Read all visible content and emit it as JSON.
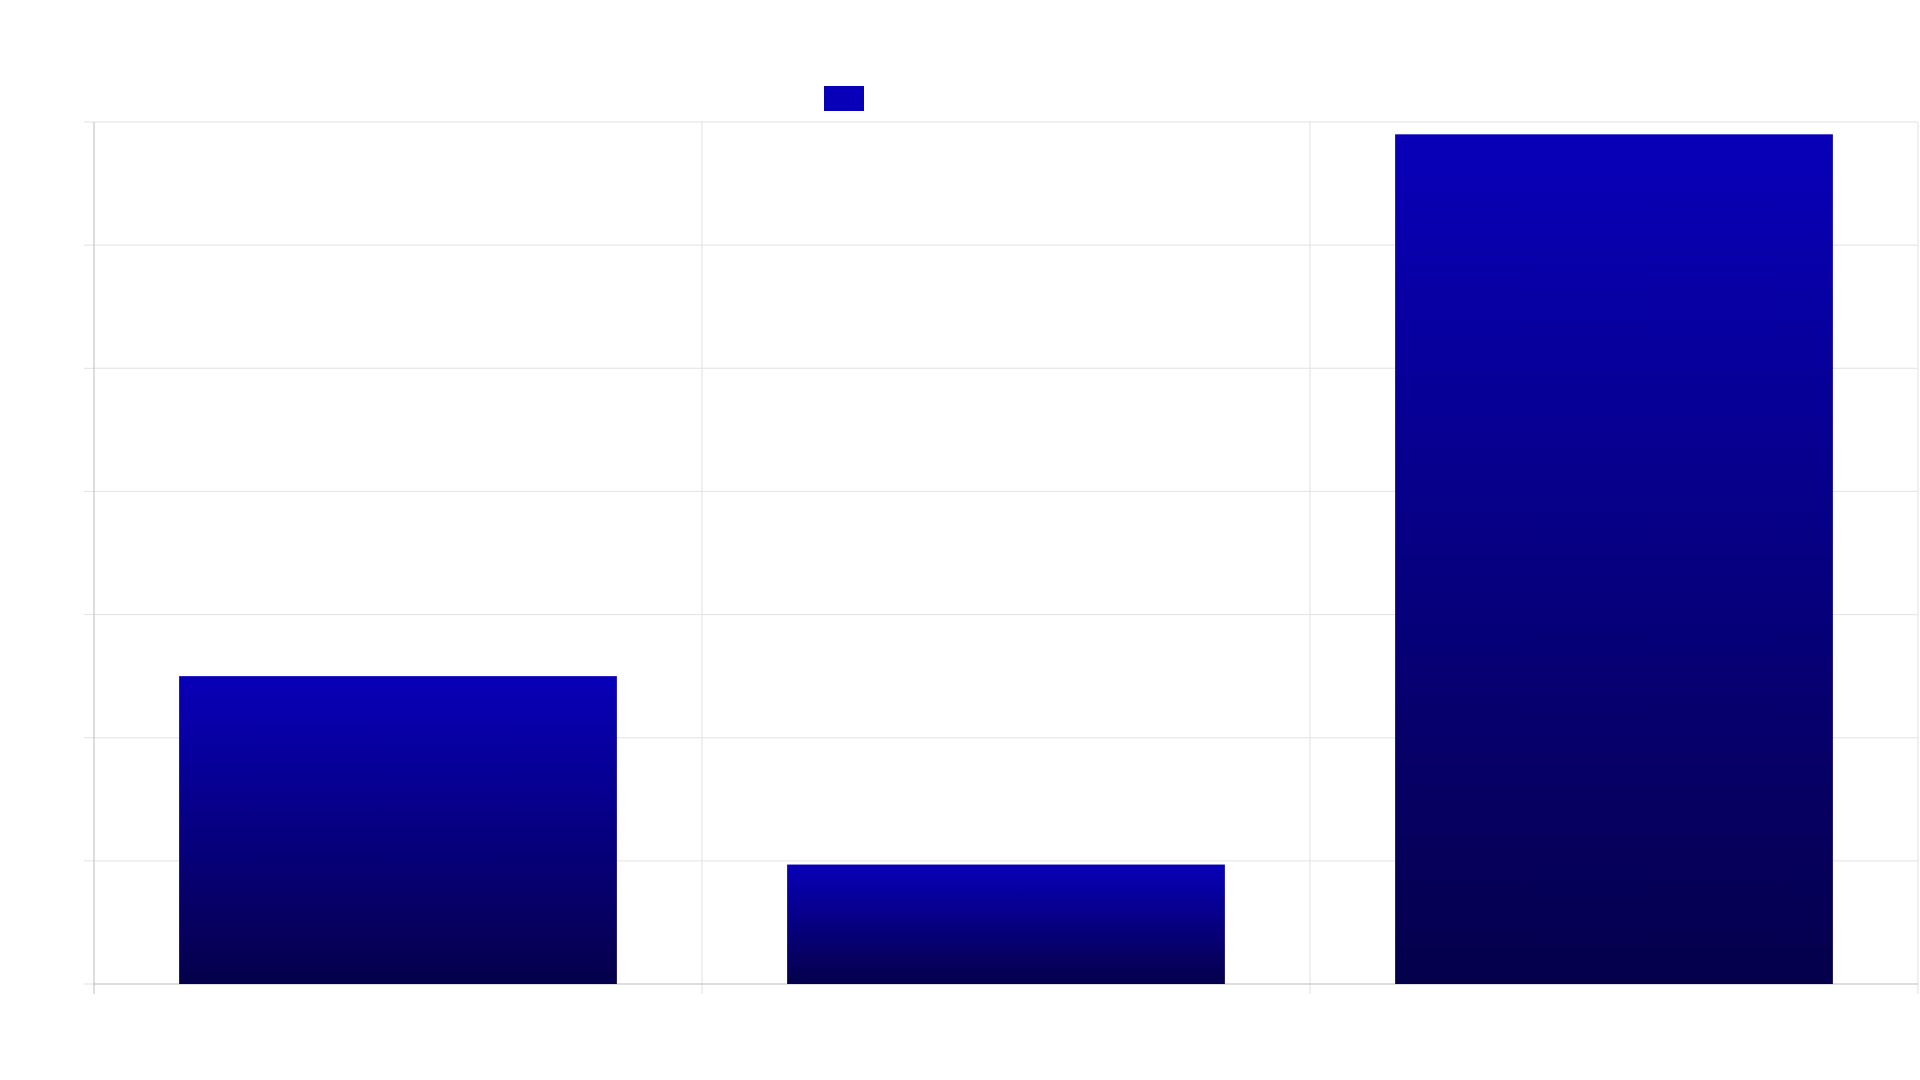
{
  "chart_data": {
    "type": "bar",
    "categories": [
      "",
      "",
      ""
    ],
    "series": [
      {
        "name": "",
        "values": [
          2.5,
          0.97,
          6.9
        ]
      }
    ],
    "ylim": [
      0,
      7
    ],
    "y_gridlines": [
      0,
      1,
      2,
      3,
      4,
      5,
      6,
      7
    ],
    "grid": true,
    "legend": "top-center",
    "title": "",
    "xlabel": "",
    "ylabel": "",
    "colors": {
      "bar_top": "#0800b8",
      "bar_bottom": "#05004a",
      "legend_swatch": "#0800b8",
      "grid": "#e2e2e2",
      "axis": "#bbbbbb"
    }
  }
}
